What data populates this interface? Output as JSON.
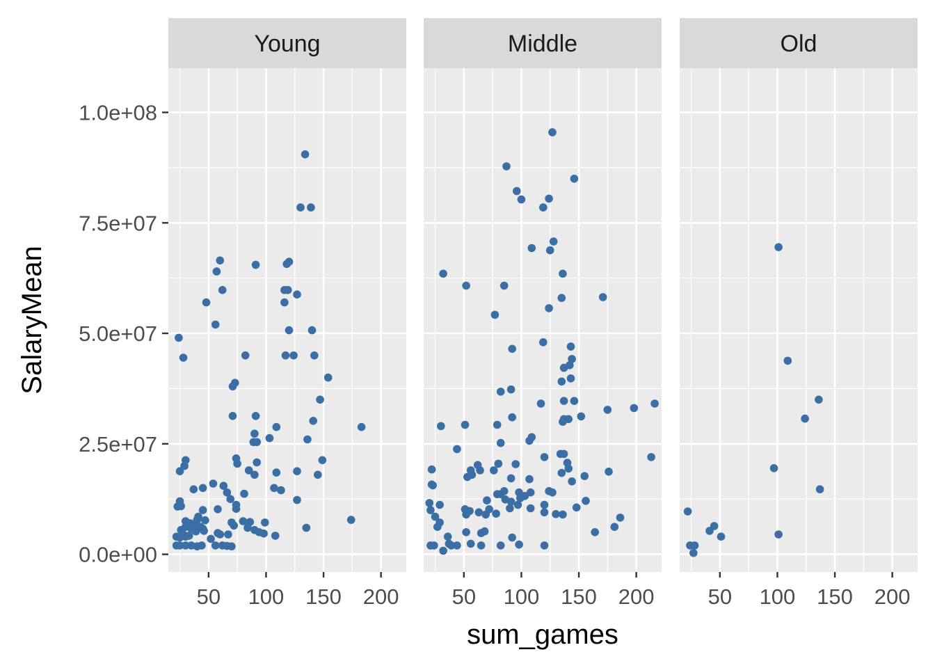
{
  "chart_data": {
    "type": "scatter",
    "layout": "faceted",
    "xlabel": "sum_games",
    "ylabel": "SalaryMean",
    "xlim": [
      15,
      222
    ],
    "ylim": [
      -4000000,
      110000000
    ],
    "x_ticks": [
      50,
      100,
      150,
      200
    ],
    "x_tick_labels": [
      "50",
      "100",
      "150",
      "200"
    ],
    "y_ticks": [
      0,
      25000000,
      50000000,
      75000000,
      100000000
    ],
    "y_tick_labels": [
      "0.0e+00",
      "2.5e+07",
      "5.0e+07",
      "7.5e+07",
      "1.0e+08"
    ],
    "grid": true,
    "point_color": "#3A6EA5",
    "panel_bg": "#EBEBEB",
    "strip_bg": "#D9D9D9",
    "facets": [
      {
        "name": "Young",
        "points": [
          [
            134,
            90500000
          ],
          [
            130,
            78500000
          ],
          [
            139,
            78500000
          ],
          [
            60,
            66500000
          ],
          [
            91,
            65500000
          ],
          [
            118,
            65700000
          ],
          [
            120,
            66200000
          ],
          [
            57,
            64000000
          ],
          [
            62,
            59800000
          ],
          [
            116,
            59800000
          ],
          [
            119,
            59800000
          ],
          [
            127,
            58800000
          ],
          [
            48,
            57000000
          ],
          [
            116,
            57000000
          ],
          [
            56,
            52000000
          ],
          [
            120,
            50700000
          ],
          [
            140,
            50700000
          ],
          [
            24,
            49000000
          ],
          [
            28,
            44500000
          ],
          [
            82,
            45000000
          ],
          [
            117,
            45000000
          ],
          [
            124,
            45000000
          ],
          [
            142,
            45000000
          ],
          [
            154,
            40000000
          ],
          [
            73,
            38800000
          ],
          [
            71,
            38000000
          ],
          [
            147,
            35000000
          ],
          [
            71,
            31300000
          ],
          [
            91,
            31300000
          ],
          [
            141,
            30200000
          ],
          [
            183,
            28800000
          ],
          [
            109,
            28800000
          ],
          [
            90,
            27300000
          ],
          [
            89,
            25400000
          ],
          [
            92,
            25400000
          ],
          [
            103,
            26300000
          ],
          [
            136,
            26000000
          ],
          [
            30,
            21300000
          ],
          [
            74,
            21700000
          ],
          [
            75,
            20500000
          ],
          [
            92,
            20800000
          ],
          [
            149,
            21300000
          ],
          [
            29,
            20000000
          ],
          [
            25,
            18800000
          ],
          [
            85,
            19000000
          ],
          [
            90,
            18000000
          ],
          [
            109,
            18500000
          ],
          [
            127,
            18800000
          ],
          [
            145,
            18000000
          ],
          [
            54,
            16000000
          ],
          [
            63,
            15500000
          ],
          [
            45,
            15000000
          ],
          [
            37,
            14700000
          ],
          [
            107,
            15000000
          ],
          [
            113,
            14500000
          ],
          [
            66,
            14000000
          ],
          [
            81,
            13700000
          ],
          [
            69,
            12500000
          ],
          [
            74,
            11200000
          ],
          [
            127,
            12300000
          ],
          [
            25,
            12000000
          ],
          [
            23,
            10800000
          ],
          [
            26,
            10900000
          ],
          [
            45,
            10000000
          ],
          [
            58,
            10200000
          ],
          [
            74,
            10300000
          ],
          [
            30,
            7500000
          ],
          [
            34,
            7000000
          ],
          [
            41,
            8500000
          ],
          [
            47,
            7700000
          ],
          [
            70,
            7200000
          ],
          [
            80,
            7500000
          ],
          [
            86,
            7300000
          ],
          [
            99,
            7200000
          ],
          [
            174,
            7800000
          ],
          [
            26,
            5500000
          ],
          [
            30,
            6200000
          ],
          [
            35,
            5800000
          ],
          [
            38,
            6500000
          ],
          [
            40,
            7800000
          ],
          [
            43,
            6200000
          ],
          [
            45,
            5800000
          ],
          [
            72,
            6500000
          ],
          [
            84,
            6000000
          ],
          [
            90,
            5500000
          ],
          [
            94,
            5000000
          ],
          [
            98,
            4700000
          ],
          [
            135,
            6000000
          ],
          [
            28,
            4500000
          ],
          [
            30,
            4000000
          ],
          [
            33,
            4200000
          ],
          [
            39,
            5200000
          ],
          [
            46,
            5300000
          ],
          [
            58,
            4800000
          ],
          [
            60,
            4500000
          ],
          [
            67,
            4500000
          ],
          [
            108,
            4200000
          ],
          [
            22,
            4000000
          ],
          [
            25,
            3800000
          ],
          [
            52,
            3500000
          ],
          [
            22,
            2000000
          ],
          [
            25,
            2000000
          ],
          [
            30,
            2000000
          ],
          [
            35,
            2000000
          ],
          [
            40,
            1800000
          ],
          [
            44,
            2000000
          ],
          [
            56,
            2000000
          ],
          [
            62,
            2000000
          ],
          [
            66,
            1900000
          ],
          [
            70,
            1800000
          ]
        ]
      },
      {
        "name": "Middle",
        "points": [
          [
            127,
            95500000
          ],
          [
            87,
            87800000
          ],
          [
            146,
            85000000
          ],
          [
            96,
            82200000
          ],
          [
            100,
            80300000
          ],
          [
            124,
            80500000
          ],
          [
            119,
            78500000
          ],
          [
            128,
            70800000
          ],
          [
            109,
            69300000
          ],
          [
            125,
            68800000
          ],
          [
            32,
            63500000
          ],
          [
            136,
            63500000
          ],
          [
            52,
            60800000
          ],
          [
            85,
            60800000
          ],
          [
            135,
            58000000
          ],
          [
            171,
            58200000
          ],
          [
            124,
            55700000
          ],
          [
            77,
            54200000
          ],
          [
            119,
            48000000
          ],
          [
            92,
            46500000
          ],
          [
            143,
            47000000
          ],
          [
            144,
            44200000
          ],
          [
            137,
            42200000
          ],
          [
            142,
            42800000
          ],
          [
            143,
            39800000
          ],
          [
            135,
            39100000
          ],
          [
            91,
            37300000
          ],
          [
            82,
            36800000
          ],
          [
            117,
            34100000
          ],
          [
            137,
            34700000
          ],
          [
            146,
            34700000
          ],
          [
            216,
            34100000
          ],
          [
            198,
            33100000
          ],
          [
            175,
            32700000
          ],
          [
            92,
            31000000
          ],
          [
            152,
            31200000
          ],
          [
            137,
            30600000
          ],
          [
            141,
            30600000
          ],
          [
            136,
            30000000
          ],
          [
            30,
            29000000
          ],
          [
            51,
            29300000
          ],
          [
            79,
            29300000
          ],
          [
            109,
            26500000
          ],
          [
            107,
            25700000
          ],
          [
            82,
            25200000
          ],
          [
            44,
            23800000
          ],
          [
            134,
            22700000
          ],
          [
            137,
            22700000
          ],
          [
            120,
            22000000
          ],
          [
            213,
            22000000
          ],
          [
            62,
            20200000
          ],
          [
            80,
            20500000
          ],
          [
            95,
            20400000
          ],
          [
            140,
            20700000
          ],
          [
            141,
            19400000
          ],
          [
            22,
            19200000
          ],
          [
            56,
            19000000
          ],
          [
            64,
            19000000
          ],
          [
            76,
            19000000
          ],
          [
            176,
            18700000
          ],
          [
            53,
            17500000
          ],
          [
            57,
            18000000
          ],
          [
            135,
            18400000
          ],
          [
            155,
            17700000
          ],
          [
            91,
            17200000
          ],
          [
            107,
            17000000
          ],
          [
            144,
            16500000
          ],
          [
            22,
            15800000
          ],
          [
            23,
            15600000
          ],
          [
            85,
            14300000
          ],
          [
            79,
            13600000
          ],
          [
            98,
            14000000
          ],
          [
            108,
            14000000
          ],
          [
            124,
            14300000
          ],
          [
            127,
            14000000
          ],
          [
            82,
            13600000
          ],
          [
            86,
            12400000
          ],
          [
            99,
            12700000
          ],
          [
            103,
            13200000
          ],
          [
            20,
            11600000
          ],
          [
            29,
            11200000
          ],
          [
            70,
            12200000
          ],
          [
            91,
            11900000
          ],
          [
            97,
            11200000
          ],
          [
            120,
            11200000
          ],
          [
            156,
            12100000
          ],
          [
            21,
            10000000
          ],
          [
            51,
            10200000
          ],
          [
            55,
            9800000
          ],
          [
            63,
            9500000
          ],
          [
            72,
            10200000
          ],
          [
            90,
            10400000
          ],
          [
            108,
            10400000
          ],
          [
            148,
            10600000
          ],
          [
            25,
            8500000
          ],
          [
            52,
            9000000
          ],
          [
            69,
            9000000
          ],
          [
            78,
            9200000
          ],
          [
            120,
            9500000
          ],
          [
            130,
            9100000
          ],
          [
            136,
            9000000
          ],
          [
            186,
            8300000
          ],
          [
            29,
            7200000
          ],
          [
            27,
            6200000
          ],
          [
            181,
            6200000
          ],
          [
            52,
            5000000
          ],
          [
            65,
            4800000
          ],
          [
            68,
            5200000
          ],
          [
            164,
            5000000
          ],
          [
            36,
            4000000
          ],
          [
            92,
            3800000
          ],
          [
            21,
            2000000
          ],
          [
            24,
            2000000
          ],
          [
            37,
            2400000
          ],
          [
            39,
            2000000
          ],
          [
            44,
            2000000
          ],
          [
            56,
            2400000
          ],
          [
            65,
            2000000
          ],
          [
            82,
            2000000
          ],
          [
            98,
            2200000
          ],
          [
            120,
            2000000
          ],
          [
            32,
            800000
          ]
        ]
      },
      {
        "name": "Old",
        "points": [
          [
            101,
            69500000
          ],
          [
            109,
            43800000
          ],
          [
            136,
            35000000
          ],
          [
            124,
            30700000
          ],
          [
            97,
            19500000
          ],
          [
            137,
            14700000
          ],
          [
            22,
            9700000
          ],
          [
            41,
            5300000
          ],
          [
            45,
            6400000
          ],
          [
            51,
            4000000
          ],
          [
            101,
            4500000
          ],
          [
            24,
            2000000
          ],
          [
            28,
            2000000
          ],
          [
            27,
            300000
          ]
        ]
      }
    ]
  }
}
